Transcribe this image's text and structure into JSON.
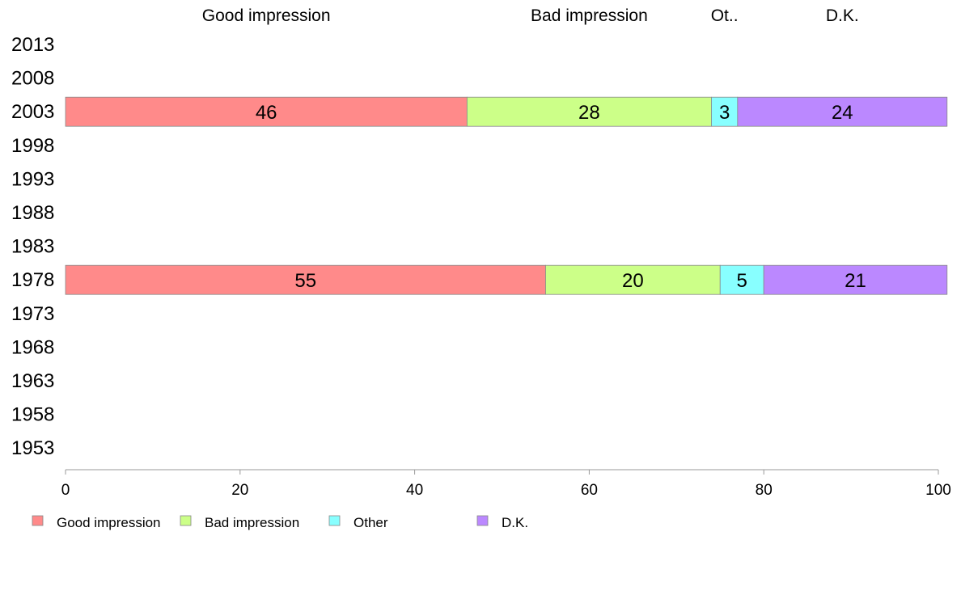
{
  "chart_data": {
    "type": "bar",
    "orientation": "horizontal",
    "stacked": true,
    "title": "",
    "xlabel": "",
    "ylabel": "",
    "xlim": [
      0,
      100
    ],
    "x_ticks": [
      0,
      20,
      40,
      60,
      80,
      100
    ],
    "categories": [
      "2013",
      "2008",
      "2003",
      "1998",
      "1993",
      "1988",
      "1983",
      "1978",
      "1973",
      "1968",
      "1963",
      "1958",
      "1953"
    ],
    "series": [
      {
        "name": "Good impression",
        "color": "#ff8a8a",
        "values": [
          null,
          null,
          46,
          null,
          null,
          null,
          null,
          55,
          null,
          null,
          null,
          null,
          null
        ]
      },
      {
        "name": "Bad impression",
        "color": "#ccff88",
        "values": [
          null,
          null,
          28,
          null,
          null,
          null,
          null,
          20,
          null,
          null,
          null,
          null,
          null
        ]
      },
      {
        "name": "Other",
        "color": "#88ffff",
        "values": [
          null,
          null,
          3,
          null,
          null,
          null,
          null,
          5,
          null,
          null,
          null,
          null,
          null
        ]
      },
      {
        "name": "D.K.",
        "color": "#bb88ff",
        "values": [
          null,
          null,
          24,
          null,
          null,
          null,
          null,
          21,
          null,
          null,
          null,
          null,
          null
        ]
      }
    ],
    "column_headers": [
      "Good impression",
      "Bad impression",
      "Ot..",
      "D.K."
    ],
    "legend": {
      "position": "bottom-left",
      "entries": [
        "Good impression",
        "Bad impression",
        "Other",
        "D.K."
      ]
    },
    "grid": false
  }
}
